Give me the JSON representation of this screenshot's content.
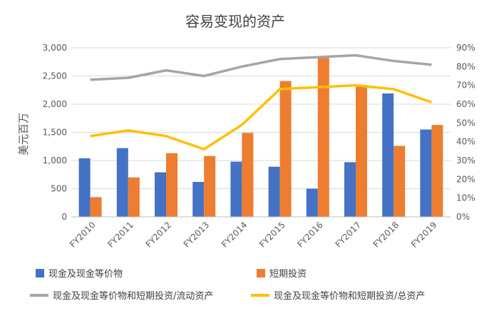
{
  "chart_data": {
    "type": "bar",
    "title": "容易变现的资产",
    "ylabel": "美元百万",
    "categories": [
      "FY2010",
      "FY2011",
      "FY2012",
      "FY2013",
      "FY2014",
      "FY2015",
      "FY2016",
      "FY2017",
      "FY2018",
      "FY2019"
    ],
    "ylim": [
      0,
      3000
    ],
    "yticks": [
      "0",
      "500",
      "1,000",
      "1,500",
      "2,000",
      "2,500",
      "3,000"
    ],
    "y2lim": [
      0,
      90
    ],
    "y2ticks": [
      "0%",
      "10%",
      "20%",
      "30%",
      "40%",
      "50%",
      "60%",
      "70%",
      "80%",
      "90%"
    ],
    "series": [
      {
        "name": "现金及现金等价物",
        "kind": "bar",
        "axis": "left",
        "color": "#4472C4",
        "values": [
          1040,
          1220,
          790,
          620,
          980,
          890,
          500,
          970,
          2190,
          1550
        ]
      },
      {
        "name": "短期投资",
        "kind": "bar",
        "axis": "left",
        "color": "#ED7D31",
        "values": [
          350,
          700,
          1130,
          1080,
          1490,
          2410,
          2820,
          2340,
          1260,
          1630
        ]
      },
      {
        "name": "现金及现金等价物和短期投资/流动资产",
        "kind": "line",
        "axis": "right",
        "color": "#A5A5A5",
        "values": [
          73,
          74,
          78,
          75,
          80,
          84,
          85,
          86,
          83,
          81
        ]
      },
      {
        "name": "现金及现金等价物和短期投资/总资产",
        "kind": "line",
        "axis": "right",
        "color": "#FFC000",
        "values": [
          43,
          46,
          43,
          36,
          49,
          68,
          69,
          70,
          68,
          61
        ]
      }
    ],
    "grid": true,
    "legend": "bottom"
  }
}
